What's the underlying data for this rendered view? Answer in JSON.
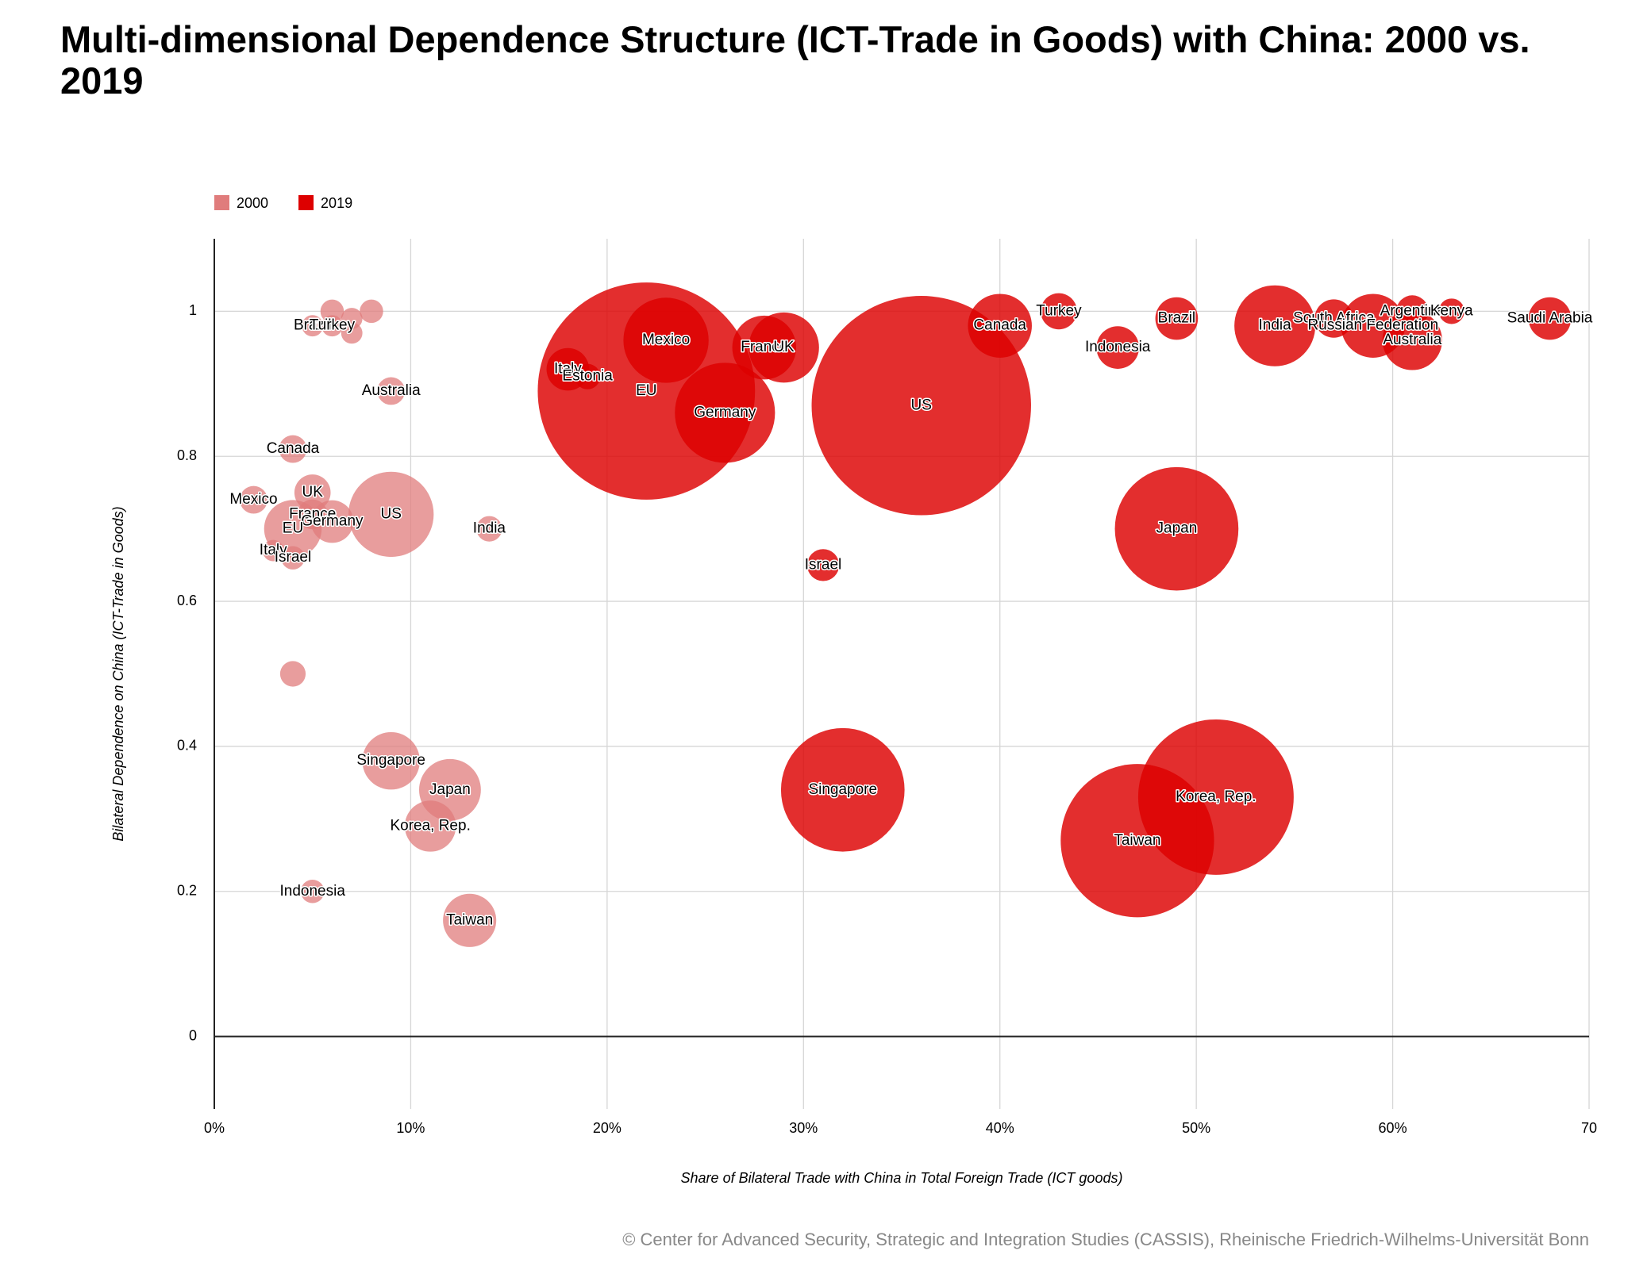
{
  "chart_data": {
    "type": "bubble",
    "title": "Multi-dimensional Dependence Structure (ICT-Trade in Goods) with China: 2000 vs. 2019",
    "x_label": "Share of Bilateral Trade with China in Total Foreign Trade (ICT goods)",
    "y_label": "Bilateral Dependence on China (ICT-Trade in Goods)",
    "source": "© Center for Advanced Security, Strategic and Integration Studies (CASSIS), Rheinische Friedrich-Wilhelms-Universität Bonn",
    "xlim": [
      0,
      70
    ],
    "ylim": [
      -0.1,
      1.1
    ],
    "xticks": [
      {
        "value": 0,
        "label": "0%"
      },
      {
        "value": 10,
        "label": "10%"
      },
      {
        "value": 20,
        "label": "20%"
      },
      {
        "value": 30,
        "label": "30%"
      },
      {
        "value": 40,
        "label": "40%"
      },
      {
        "value": 50,
        "label": "50%"
      },
      {
        "value": 60,
        "label": "60%"
      },
      {
        "value": 70,
        "label": "70"
      }
    ],
    "yticks": [
      0,
      0.2,
      0.4,
      0.6,
      0.8,
      1
    ],
    "grid": true,
    "legend": "top-left",
    "series": [
      {
        "name": "2000",
        "color": "#e07c7c",
        "labels": [
          "Brazil",
          "Turkey",
          null,
          null,
          null,
          null,
          "Australia",
          "Canada",
          "Mexico",
          "UK",
          "France",
          "Germany",
          "US",
          "EU",
          "India",
          "Italy",
          "Israel",
          null,
          "Singapore",
          "Japan",
          "Korea, Rep.",
          "Indonesia",
          "Taiwan"
        ],
        "x": [
          5,
          6,
          6,
          7,
          7,
          8,
          9,
          4,
          2,
          5,
          5,
          6,
          9,
          4,
          14,
          3,
          4,
          4,
          9,
          12,
          11,
          5,
          13
        ],
        "y": [
          0.98,
          0.98,
          1.0,
          0.99,
          0.97,
          1.0,
          0.89,
          0.81,
          0.74,
          0.75,
          0.72,
          0.71,
          0.72,
          0.7,
          0.7,
          0.67,
          0.66,
          0.5,
          0.38,
          0.34,
          0.29,
          0.2,
          0.16
        ],
        "size": [
          10,
          10,
          11,
          10,
          10,
          11,
          13,
          13,
          13,
          17,
          14,
          20,
          40,
          27,
          12,
          10,
          11,
          12,
          27,
          29,
          24,
          11,
          25
        ]
      },
      {
        "name": "2019",
        "color": "#dd0000",
        "labels": [
          "Italy",
          "Estonia",
          "EU",
          "Mexico",
          "Germany",
          "France",
          "UK",
          "US",
          "Israel",
          "Singapore",
          "Canada",
          "Turkey",
          "Indonesia",
          "Brazil",
          "Japan",
          "Taiwan",
          "Korea, Rep.",
          "India",
          "South Africa",
          "Russian Federation",
          "Argentina",
          "Australia",
          "Kenya",
          "Saudi Arabia"
        ],
        "x": [
          18,
          19,
          22,
          23,
          26,
          28,
          29,
          36,
          31,
          32,
          40,
          43,
          46,
          49,
          49,
          47,
          51,
          54,
          57,
          59,
          61,
          61,
          63,
          68
        ],
        "y": [
          0.92,
          0.91,
          0.89,
          0.96,
          0.86,
          0.95,
          0.95,
          0.87,
          0.65,
          0.34,
          0.98,
          1.0,
          0.95,
          0.99,
          0.7,
          0.27,
          0.33,
          0.98,
          0.99,
          0.98,
          1.0,
          0.96,
          1.0,
          0.99
        ],
        "size": [
          20,
          12,
          102,
          40,
          47,
          30,
          33,
          103,
          15,
          58,
          30,
          17,
          20,
          20,
          58,
          72,
          73,
          38,
          18,
          30,
          15,
          28,
          12,
          20
        ]
      }
    ]
  }
}
